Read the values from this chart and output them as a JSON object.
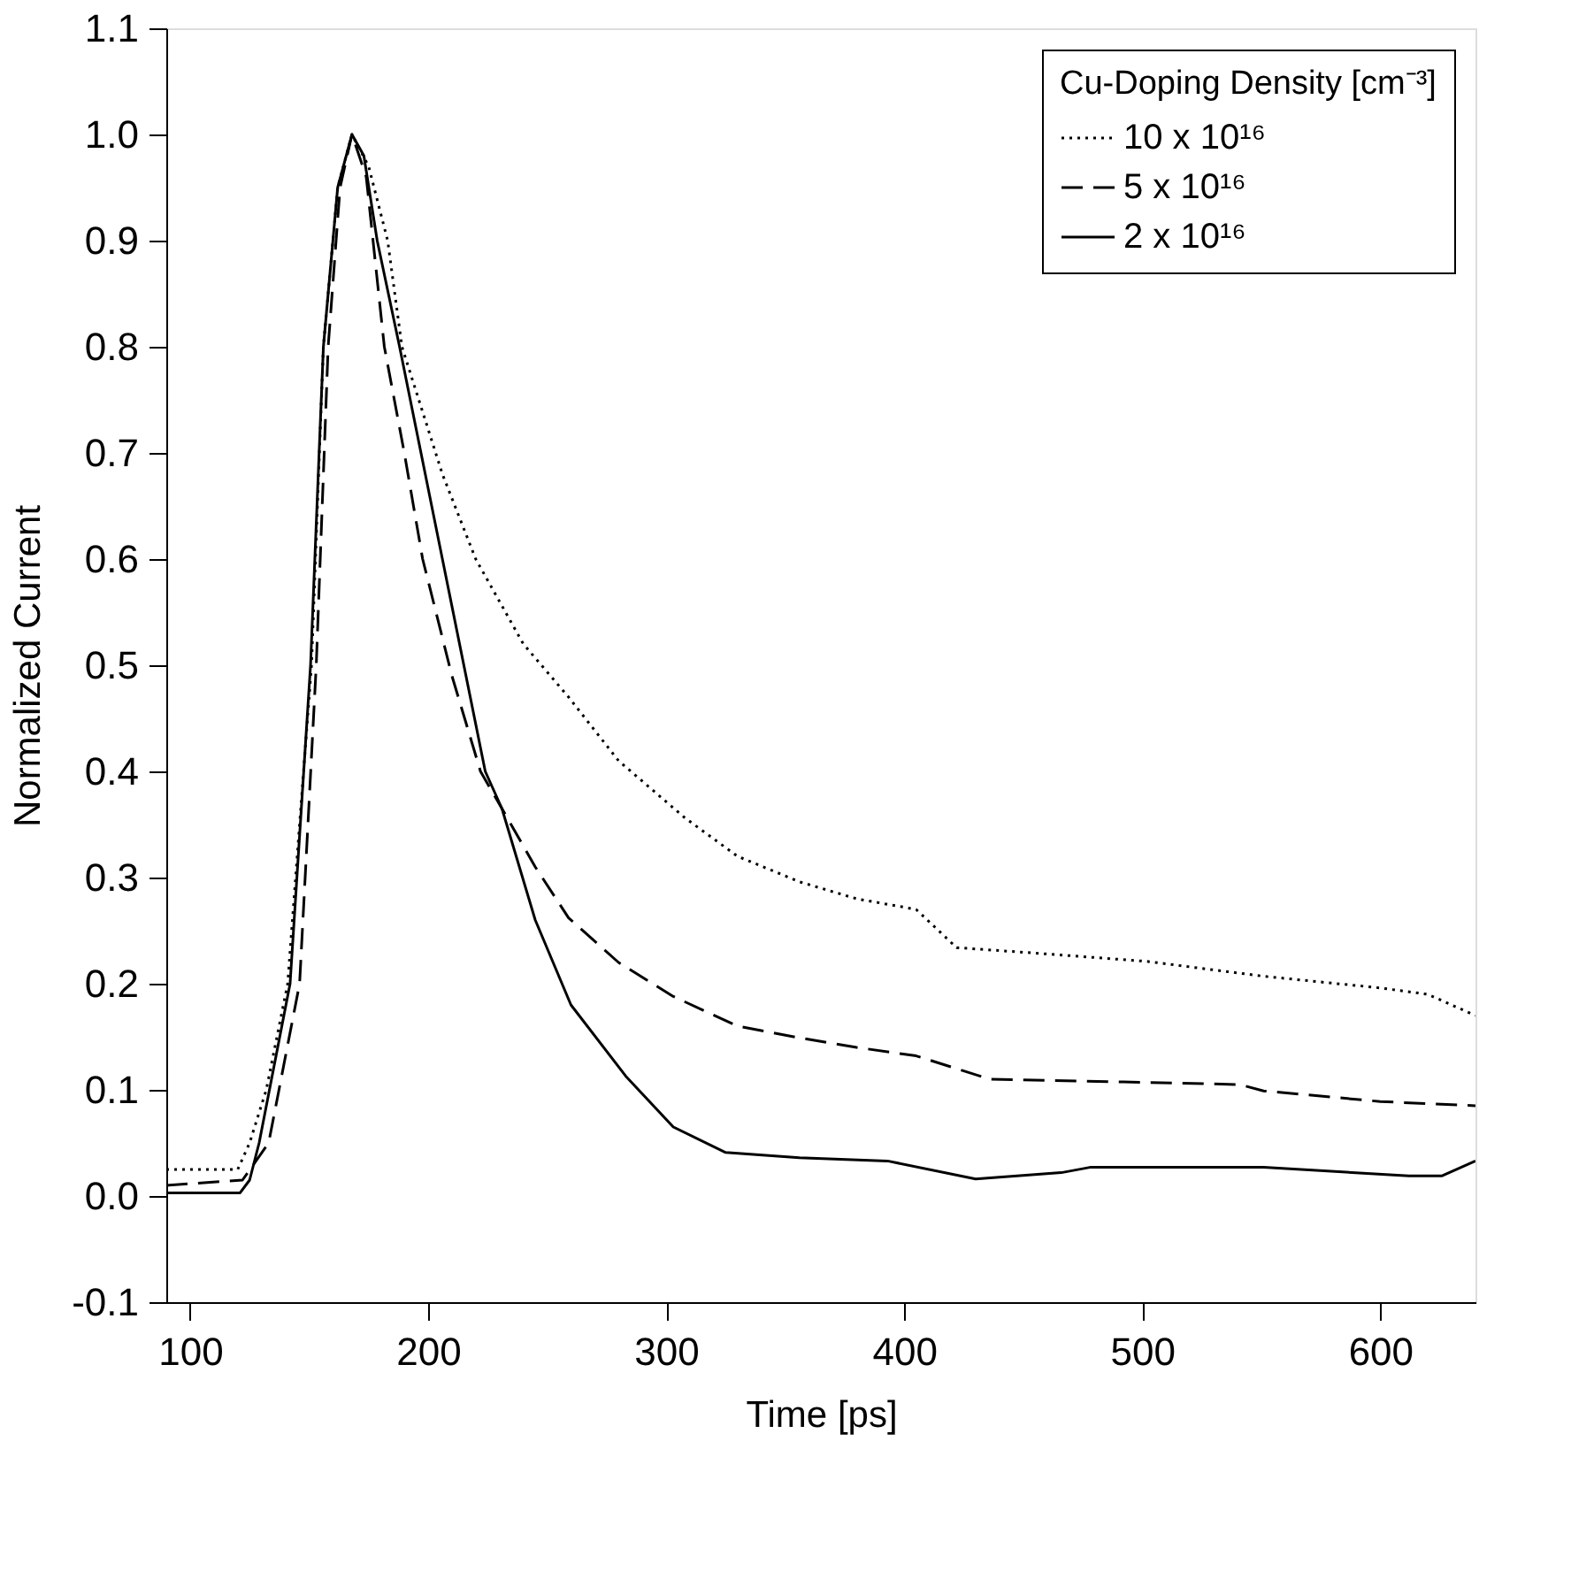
{
  "chart_data": {
    "type": "line",
    "xlabel": "Time [ps]",
    "ylabel": "Normalized Current",
    "legend_title": "Cu-Doping Density [cm⁻³]",
    "legend": "top right",
    "grid": false,
    "xlim": [
      90,
      640
    ],
    "xticks": [
      100,
      200,
      300,
      400,
      500,
      600
    ],
    "ylim": [
      -0.1,
      1.1
    ],
    "yticks": [
      {
        "value": -0.1,
        "label": "-0.1"
      },
      {
        "value": 0,
        "label": "0.0"
      },
      {
        "value": 0.1,
        "label": "0.1"
      },
      {
        "value": 0.2,
        "label": "0.2"
      },
      {
        "value": 0.3,
        "label": "0.3"
      },
      {
        "value": 0.4,
        "label": "0.4"
      },
      {
        "value": 0.5,
        "label": "0.5"
      },
      {
        "value": 0.6,
        "label": "0.6"
      },
      {
        "value": 0.7,
        "label": "0.7"
      },
      {
        "value": 0.8,
        "label": "0.8"
      },
      {
        "value": 0.9,
        "label": "0.9"
      },
      {
        "value": 1,
        "label": "1.0"
      },
      {
        "value": 1.1,
        "label": "1.1"
      }
    ],
    "series": [
      {
        "name": "10 x 10¹⁶",
        "color": "#000000",
        "line_style": "dotted",
        "x": [
          90,
          120,
          125,
          132,
          141,
          146,
          151,
          156,
          162,
          168,
          175,
          183,
          189,
          206,
          220,
          240,
          259,
          280,
          308,
          330,
          356,
          380,
          405,
          422,
          454,
          502,
          551,
          600,
          620,
          640
        ],
        "values": [
          0.025,
          0.025,
          0.05,
          0.1,
          0.2,
          0.35,
          0.5,
          0.8,
          0.95,
          1.0,
          0.97,
          0.9,
          0.8,
          0.68,
          0.6,
          0.52,
          0.47,
          0.41,
          0.356,
          0.32,
          0.296,
          0.28,
          0.27,
          0.234,
          0.229,
          0.221,
          0.207,
          0.196,
          0.19,
          0.17
        ]
      },
      {
        "name": "5 x 10¹⁶",
        "color": "#000000",
        "line_style": "dashed",
        "x": [
          90,
          122,
          133,
          146,
          153,
          158,
          163,
          168,
          174,
          181.6,
          190,
          197.7,
          210,
          222,
          231,
          245,
          259,
          280,
          303,
          330,
          356,
          380,
          405,
          436,
          502,
          541,
          551,
          600,
          640
        ],
        "values": [
          0.01,
          0.015,
          0.05,
          0.2,
          0.5,
          0.8,
          0.95,
          1.0,
          0.96,
          0.8,
          0.7,
          0.6,
          0.49,
          0.4,
          0.365,
          0.31,
          0.262,
          0.22,
          0.188,
          0.16,
          0.149,
          0.14,
          0.132,
          0.11,
          0.107,
          0.105,
          0.099,
          0.089,
          0.085
        ]
      },
      {
        "name": "2 x 10¹⁶",
        "color": "#000000",
        "line_style": "solid",
        "x": [
          90,
          121,
          125,
          129,
          142,
          150.6,
          156,
          162,
          168,
          173,
          178.6,
          188,
          206,
          224,
          231,
          245,
          260,
          283,
          303,
          325,
          356,
          393,
          430,
          466,
          478,
          551,
          612,
          626,
          640
        ],
        "values": [
          0.003,
          0.003,
          0.015,
          0.05,
          0.2,
          0.5,
          0.8,
          0.95,
          1.0,
          0.98,
          0.9,
          0.8,
          0.6,
          0.4,
          0.365,
          0.26,
          0.18,
          0.113,
          0.065,
          0.041,
          0.036,
          0.033,
          0.016,
          0.022,
          0.027,
          0.027,
          0.019,
          0.019,
          0.033
        ]
      }
    ]
  }
}
